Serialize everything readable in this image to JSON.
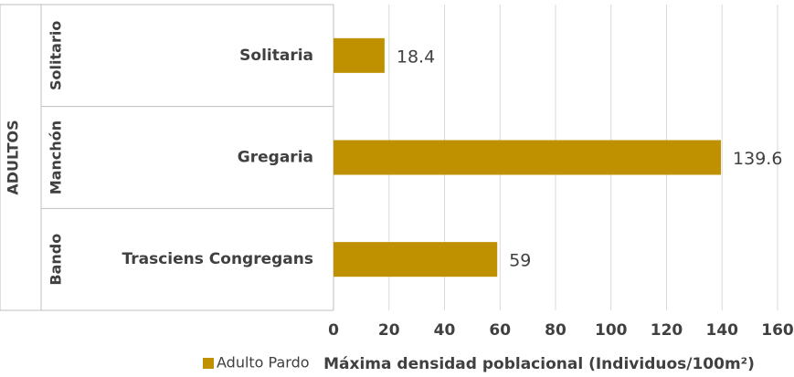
{
  "chart_data": {
    "type": "bar",
    "orientation": "horizontal",
    "outer_group": "ADULTOS",
    "groups": [
      "Solitario",
      "Manchón",
      "Bando"
    ],
    "categories": [
      "Solitaria",
      "Gregaria",
      "Trasciens Congregans"
    ],
    "series": [
      {
        "name": "Adulto Pardo",
        "color": "#bf9000",
        "values": [
          18.4,
          139.6,
          59
        ]
      }
    ],
    "xlabel": "Máxima densidad poblacional (Individuos/100m²)",
    "xlim": [
      0,
      160
    ],
    "xticks": [
      0,
      20,
      40,
      60,
      80,
      100,
      120,
      140,
      160
    ],
    "grid": true,
    "legend": "bottom-left"
  }
}
